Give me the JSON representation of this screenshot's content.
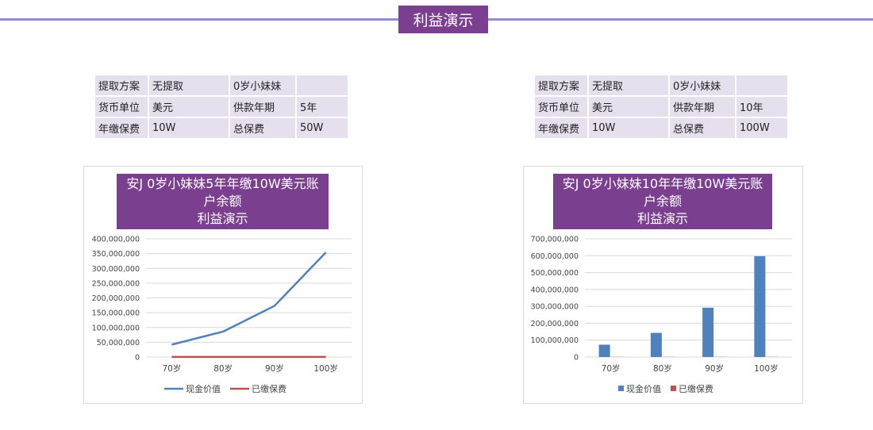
{
  "header": {
    "title": "利益演示"
  },
  "left_table": {
    "rows": [
      [
        "提取方案",
        "无提取",
        "0岁小妹妹",
        ""
      ],
      [
        "货币单位",
        "美元",
        "供款年期",
        "5年"
      ],
      [
        "年缴保费",
        "10W",
        "总保费",
        "50W"
      ]
    ]
  },
  "right_table": {
    "rows": [
      [
        "提取方案",
        "无提取",
        "0岁小妹妹",
        ""
      ],
      [
        "货币单位",
        "美元",
        "供款年期",
        "10年"
      ],
      [
        "年缴保费",
        "10W",
        "总保费",
        "100W"
      ]
    ]
  },
  "colors": {
    "accent": "#7b3f8f",
    "line_series": "#4f81bd",
    "premium_series": "#c0504d",
    "table_bg": "#e6e0ee",
    "top_line": "#8e8ed0"
  },
  "chart_data": [
    {
      "type": "line",
      "title_lines": [
        "安J 0岁小妹妹5年年缴10W美元账",
        "户余额",
        "利益演示"
      ],
      "categories": [
        "70岁",
        "80岁",
        "90岁",
        "100岁"
      ],
      "series": [
        {
          "name": "现金价值",
          "values": [
            42000000,
            86000000,
            173000000,
            354000000
          ]
        },
        {
          "name": "已缴保费",
          "values": [
            500000,
            500000,
            500000,
            500000
          ]
        }
      ],
      "ylim": [
        0,
        400000000
      ],
      "yticks": [
        "0",
        "50,000,000",
        "100,000,000",
        "150,000,000",
        "200,000,000",
        "250,000,000",
        "300,000,000",
        "350,000,000",
        "400,000,000"
      ],
      "grid": true,
      "legend": "bottom"
    },
    {
      "type": "bar",
      "title_lines": [
        "安J 0岁小妹妹10年年缴10W美元账",
        "户余额",
        "利益演示"
      ],
      "categories": [
        "70岁",
        "80岁",
        "90岁",
        "100岁"
      ],
      "series": [
        {
          "name": "现金价值",
          "values": [
            73000000,
            143000000,
            292000000,
            597000000
          ]
        },
        {
          "name": "已缴保费",
          "values": [
            1000000,
            1000000,
            1000000,
            1000000
          ]
        }
      ],
      "ylim": [
        0,
        700000000
      ],
      "yticks": [
        "0",
        "100,000,000",
        "200,000,000",
        "300,000,000",
        "400,000,000",
        "500,000,000",
        "600,000,000",
        "700,000,000"
      ],
      "grid": true,
      "legend": "bottom"
    }
  ]
}
